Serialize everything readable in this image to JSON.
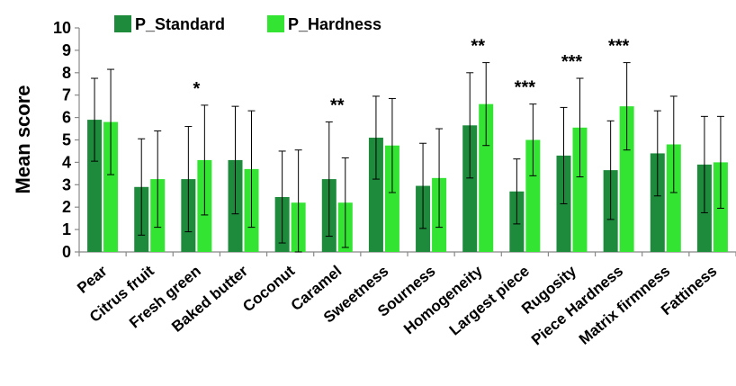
{
  "chart_data": {
    "type": "bar",
    "ylabel": "Mean score",
    "ylim": [
      0,
      10
    ],
    "yticks": [
      0,
      1,
      2,
      3,
      4,
      5,
      6,
      7,
      8,
      9,
      10
    ],
    "legend_position": "top-left",
    "categories": [
      "Pear",
      "Citrus fruit",
      "Fresh green",
      "Baked butter",
      "Coconut",
      "Caramel",
      "Sweetness",
      "Sourness",
      "Homogeneity",
      "Largest piece",
      "Rugosity",
      "Piece Hardness",
      "Matrix firmness",
      "Fattiness"
    ],
    "series": [
      {
        "name": "P_Standard",
        "color": "#1e8a3c",
        "values": [
          5.9,
          2.9,
          3.25,
          4.1,
          2.45,
          3.25,
          5.1,
          2.95,
          5.65,
          2.7,
          4.3,
          3.65,
          4.4,
          3.9
        ],
        "error": [
          1.85,
          2.15,
          2.35,
          2.4,
          2.05,
          2.55,
          1.85,
          1.9,
          2.35,
          1.45,
          2.15,
          2.2,
          1.9,
          2.15
        ]
      },
      {
        "name": "P_Hardness",
        "color": "#33e433",
        "values": [
          5.8,
          3.25,
          4.1,
          3.7,
          2.2,
          2.2,
          4.75,
          3.3,
          6.6,
          5.0,
          5.55,
          6.5,
          4.8,
          4.0
        ],
        "error": [
          2.35,
          2.15,
          2.45,
          2.6,
          2.35,
          2.0,
          2.1,
          2.2,
          1.85,
          1.6,
          2.2,
          1.95,
          2.15,
          2.05
        ]
      }
    ],
    "significance": [
      "",
      "",
      "*",
      "",
      "",
      "**",
      "",
      "",
      "**",
      "***",
      "***",
      "***",
      "",
      ""
    ]
  }
}
